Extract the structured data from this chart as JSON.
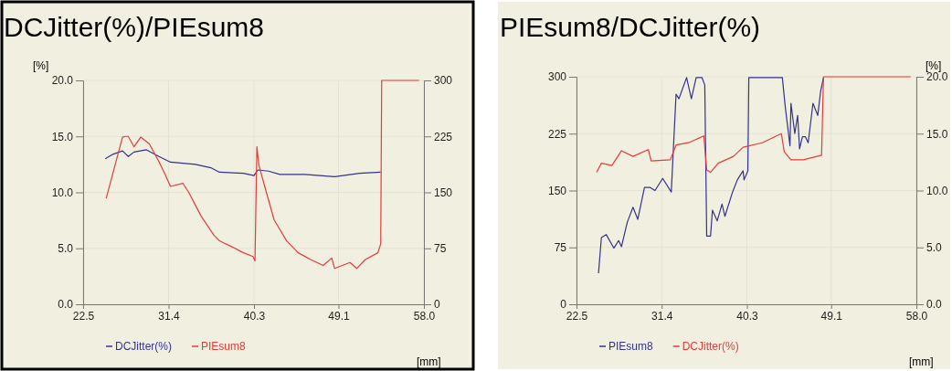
{
  "chart_data": [
    {
      "type": "line",
      "title": "DCJitter(%)/PIEsum8",
      "ylabel": "[%]",
      "xlabel": "[mm]",
      "xlim": [
        22.5,
        58
      ],
      "xticks": [
        22.5,
        31.4,
        40.3,
        49.1,
        {
          "value": 58,
          "label": "58.0"
        }
      ],
      "ylim": [
        0,
        20
      ],
      "yticks": [
        {
          "value": 0,
          "label": "0.0"
        },
        {
          "value": 5,
          "label": "5.0"
        },
        {
          "value": 10,
          "label": "10.0"
        },
        {
          "value": 15,
          "label": "15.0"
        },
        {
          "value": 20,
          "label": "20.0"
        }
      ],
      "y2lim": [
        0,
        300
      ],
      "y2ticks": [
        0,
        75,
        150,
        225,
        300
      ],
      "grid": true,
      "legend": "bottom",
      "line_style": "solid",
      "marker": "none",
      "series": [
        {
          "name": "DCJitter(%)",
          "color": "#33338f",
          "x": [
            24.8,
            25.6,
            26.6,
            27.2,
            27.8,
            29.1,
            30.4,
            31.6,
            34.2,
            35.8,
            36.7,
            39.2,
            40.3,
            40.7,
            41.8,
            43.0,
            45.6,
            48.7,
            51.3,
            53.5
          ],
          "values": [
            13.0,
            13.4,
            13.7,
            13.2,
            13.6,
            13.8,
            13.2,
            12.7,
            12.5,
            12.2,
            11.8,
            11.7,
            11.5,
            12.0,
            11.9,
            11.6,
            11.6,
            11.4,
            11.7,
            11.8
          ]
        },
        {
          "name": "PIEsum8",
          "color": "#e83a3a",
          "axis": "y2",
          "x": [
            24.9,
            26.6,
            26.9,
            27.2,
            27.8,
            28.5,
            29.4,
            30.4,
            31.0,
            31.6,
            32.9,
            33.5,
            34.8,
            36.1,
            36.7,
            38.0,
            39.2,
            40.2,
            40.4,
            40.6,
            40.8,
            41.5,
            42.4,
            43.7,
            44.9,
            46.2,
            47.5,
            48.4,
            48.7,
            50.3,
            51.0,
            51.9,
            53.2,
            53.5,
            53.6,
            57.5
          ],
          "values": [
            142,
            224,
            225,
            225,
            211,
            224,
            215,
            191,
            175,
            158,
            162,
            150,
            118,
            93,
            85,
            77,
            69,
            64,
            58,
            211,
            187,
            154,
            113,
            85,
            69,
            60,
            52,
            62,
            48,
            56,
            48,
            60,
            69,
            81,
            300,
            300
          ]
        }
      ]
    },
    {
      "type": "line",
      "title": "PIEsum8/DCJitter(%)",
      "y2label": "[%]",
      "xlabel": "[mm]",
      "xlim": [
        22.5,
        58
      ],
      "xticks": [
        22.5,
        31.4,
        40.3,
        49.1,
        {
          "value": 58,
          "label": "58.0"
        }
      ],
      "ylim": [
        0,
        300
      ],
      "yticks": [
        0,
        75,
        150,
        225,
        300
      ],
      "y2lim": [
        0,
        20
      ],
      "y2ticks": [
        {
          "value": 0,
          "label": "0.0"
        },
        {
          "value": 5,
          "label": "5.0"
        },
        {
          "value": 10,
          "label": "10.0"
        },
        {
          "value": 15,
          "label": "15.0"
        },
        {
          "value": 20,
          "label": "20.0"
        }
      ],
      "grid": true,
      "legend": "bottom",
      "line_style": "solid",
      "marker": "none",
      "series": [
        {
          "name": "PIEsum8",
          "color": "#33338f",
          "x": [
            24.8,
            25.1,
            25.6,
            26.4,
            26.9,
            27.2,
            27.8,
            28.4,
            28.9,
            29.6,
            30.2,
            30.7,
            31.5,
            32.4,
            32.9,
            33.2,
            34.0,
            34.5,
            35.0,
            35.6,
            35.9,
            36.1,
            36.5,
            36.7,
            37.2,
            37.7,
            38.0,
            38.8,
            39.3,
            39.9,
            40.0,
            40.4,
            40.5,
            44.0,
            44.3,
            44.8,
            44.9,
            45.3,
            45.6,
            45.8,
            46.1,
            46.4,
            46.7,
            47.2,
            47.7,
            48.0,
            48.3
          ],
          "values": [
            41,
            88,
            92,
            74,
            84,
            76,
            108,
            128,
            112,
            154,
            154,
            150,
            166,
            148,
            277,
            271,
            299,
            271,
            299,
            299,
            289,
            90,
            90,
            124,
            110,
            132,
            116,
            148,
            164,
            176,
            164,
            176,
            299,
            299,
            261,
            209,
            265,
            225,
            249,
            205,
            221,
            221,
            213,
            265,
            249,
            281,
            299
          ]
        },
        {
          "name": "DCJitter(%)",
          "color": "#e83a3a",
          "axis": "y2",
          "x": [
            24.6,
            25.1,
            26.2,
            27.2,
            28.4,
            30.0,
            30.3,
            32.3,
            32.9,
            34.2,
            35.8,
            36.1,
            36.5,
            37.3,
            38.9,
            39.9,
            41.9,
            43.9,
            44.2,
            44.9,
            46.2,
            48.1,
            48.3,
            57.4
          ],
          "values": [
            11.6,
            12.4,
            12.2,
            13.5,
            13.0,
            13.6,
            12.6,
            12.7,
            14.0,
            14.2,
            14.8,
            11.8,
            11.6,
            12.4,
            13.0,
            13.8,
            14.2,
            15.0,
            13.4,
            12.7,
            12.7,
            13.1,
            20.0,
            20.0
          ]
        }
      ]
    }
  ]
}
